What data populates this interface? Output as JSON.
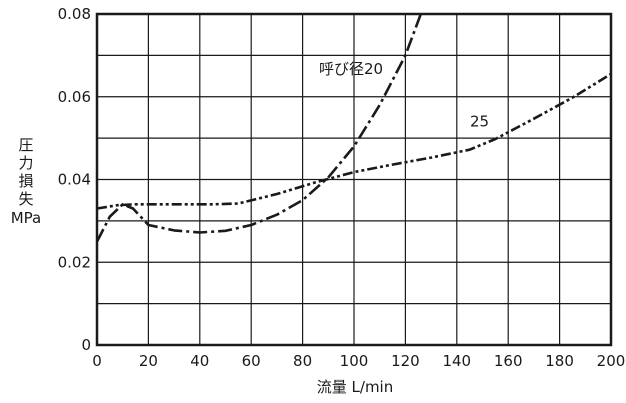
{
  "chart_data": {
    "type": "line",
    "xlabel": "流量 L/min",
    "ylabel_lines": [
      "圧",
      "力",
      "損",
      "失",
      "MPa"
    ],
    "xlim": [
      0,
      200
    ],
    "ylim": [
      0,
      0.08
    ],
    "x_ticks": [
      0,
      20,
      40,
      60,
      80,
      100,
      120,
      140,
      160,
      180,
      200
    ],
    "y_ticks": [
      0,
      0.02,
      0.04,
      0.06,
      0.08
    ],
    "y_tick_labels": [
      "0",
      "0.02",
      "0.04",
      "0.06",
      "0.08"
    ],
    "grid": true,
    "series": [
      {
        "name": "呼び径20",
        "points": [
          [
            0,
            0.025
          ],
          [
            5,
            0.031
          ],
          [
            10,
            0.034
          ],
          [
            14,
            0.033
          ],
          [
            20,
            0.029
          ],
          [
            30,
            0.0277
          ],
          [
            40,
            0.0272
          ],
          [
            50,
            0.0276
          ],
          [
            60,
            0.029
          ],
          [
            70,
            0.0315
          ],
          [
            80,
            0.035
          ],
          [
            90,
            0.0405
          ],
          [
            100,
            0.048
          ],
          [
            110,
            0.058
          ],
          [
            120,
            0.07
          ],
          [
            126,
            0.08
          ]
        ]
      },
      {
        "name": "25",
        "points": [
          [
            0,
            0.033
          ],
          [
            8,
            0.0338
          ],
          [
            15,
            0.034
          ],
          [
            30,
            0.034
          ],
          [
            45,
            0.034
          ],
          [
            55,
            0.0342
          ],
          [
            70,
            0.0365
          ],
          [
            85,
            0.0393
          ],
          [
            100,
            0.0418
          ],
          [
            115,
            0.0436
          ],
          [
            130,
            0.0453
          ],
          [
            145,
            0.0472
          ],
          [
            155,
            0.0498
          ],
          [
            170,
            0.0547
          ],
          [
            185,
            0.0598
          ],
          [
            200,
            0.0655
          ]
        ]
      }
    ],
    "annotations": [
      {
        "text": "呼び径20",
        "x": 100,
        "y": 0.0655
      },
      {
        "text": "25",
        "x": 150,
        "y": 0.0528
      }
    ]
  }
}
